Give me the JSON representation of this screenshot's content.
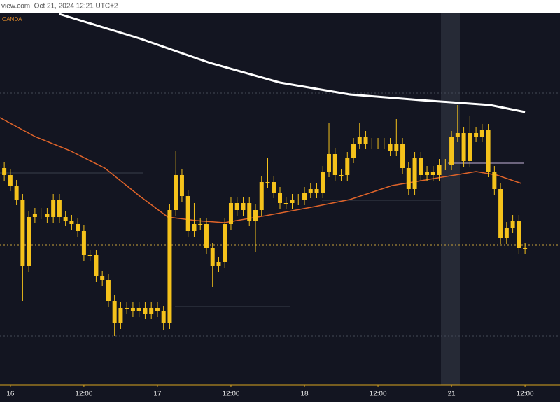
{
  "chart_data": {
    "type": "candlestick",
    "header": "view.com, Oct 21, 2024 12:21 UTC+2",
    "subtitle": "OANDA",
    "color": "#f5c21b",
    "xlim": [
      -1.7,
      89.7
    ],
    "ylim": [
      0,
      540
    ],
    "xticks": [
      {
        "value": 0,
        "label": "16"
      },
      {
        "value": 12,
        "label": "12:00"
      },
      {
        "value": 24,
        "label": "17"
      },
      {
        "value": 36,
        "label": "12:00"
      },
      {
        "value": 48,
        "label": "18"
      },
      {
        "value": 60,
        "label": "12:00"
      },
      {
        "value": 72,
        "label": "21"
      },
      {
        "value": 84,
        "label": "12:00"
      }
    ],
    "x": [
      -1,
      0,
      1,
      2,
      3,
      4,
      5,
      6,
      7,
      8,
      9,
      10,
      11,
      12,
      13,
      14,
      15,
      16,
      17,
      18,
      19,
      20,
      21,
      22,
      23,
      24,
      25,
      26,
      27,
      28,
      29,
      30,
      31,
      32,
      33,
      34,
      35,
      36,
      37,
      38,
      39,
      40,
      41,
      42,
      43,
      44,
      45,
      46,
      47,
      48,
      49,
      50,
      51,
      52,
      53,
      54,
      55,
      56,
      57,
      58,
      59,
      60,
      61,
      62,
      63,
      64,
      65,
      66,
      67,
      68,
      69,
      70,
      71,
      72,
      73,
      74,
      75,
      76,
      77,
      78,
      79,
      80,
      81,
      82,
      83,
      84
    ],
    "open": [
      320,
      310,
      295,
      275,
      180,
      250,
      255,
      255,
      250,
      275,
      250,
      245,
      240,
      230,
      195,
      195,
      165,
      160,
      130,
      98,
      120,
      120,
      115,
      120,
      112,
      120,
      115,
      98,
      260,
      310,
      280,
      230,
      240,
      240,
      205,
      180,
      185,
      240,
      270,
      260,
      270,
      245,
      260,
      300,
      300,
      285,
      270,
      270,
      275,
      275,
      285,
      290,
      285,
      315,
      340,
      310,
      310,
      335,
      355,
      365,
      355,
      355,
      355,
      355,
      345,
      355,
      320,
      290,
      335,
      310,
      315,
      310,
      325,
      325,
      365,
      370,
      330,
      370,
      365,
      375,
      315,
      290,
      220,
      235,
      245,
      205
    ],
    "high": [
      328,
      318,
      303,
      283,
      258,
      263,
      263,
      263,
      283,
      283,
      258,
      253,
      248,
      238,
      203,
      203,
      173,
      168,
      138,
      128,
      128,
      128,
      128,
      128,
      128,
      128,
      123,
      268,
      345,
      318,
      288,
      270,
      248,
      248,
      213,
      193,
      248,
      278,
      278,
      278,
      278,
      268,
      308,
      335,
      308,
      293,
      278,
      283,
      283,
      293,
      298,
      298,
      323,
      385,
      348,
      318,
      343,
      363,
      385,
      373,
      363,
      363,
      363,
      363,
      390,
      363,
      328,
      343,
      343,
      323,
      323,
      333,
      333,
      373,
      410,
      378,
      395,
      378,
      383,
      383,
      323,
      298,
      243,
      253,
      253,
      213
    ],
    "low": [
      302,
      287,
      267,
      130,
      172,
      242,
      247,
      242,
      242,
      242,
      237,
      232,
      222,
      187,
      187,
      157,
      152,
      122,
      80,
      90,
      112,
      107,
      107,
      104,
      104,
      107,
      88,
      90,
      252,
      272,
      222,
      222,
      232,
      197,
      150,
      172,
      177,
      232,
      252,
      252,
      237,
      200,
      252,
      292,
      277,
      262,
      262,
      262,
      267,
      267,
      277,
      277,
      277,
      307,
      302,
      302,
      302,
      327,
      347,
      347,
      347,
      347,
      347,
      337,
      337,
      312,
      282,
      282,
      302,
      302,
      302,
      302,
      317,
      317,
      357,
      322,
      322,
      357,
      357,
      307,
      282,
      212,
      212,
      227,
      197,
      197
    ],
    "close": [
      310,
      295,
      275,
      180,
      250,
      255,
      255,
      250,
      275,
      250,
      245,
      240,
      230,
      195,
      195,
      165,
      160,
      130,
      98,
      120,
      120,
      115,
      120,
      112,
      120,
      115,
      98,
      260,
      310,
      280,
      230,
      240,
      240,
      205,
      180,
      185,
      240,
      270,
      260,
      270,
      245,
      260,
      300,
      300,
      285,
      270,
      270,
      275,
      275,
      285,
      290,
      285,
      315,
      340,
      310,
      310,
      335,
      355,
      365,
      355,
      355,
      355,
      355,
      345,
      355,
      320,
      290,
      335,
      310,
      315,
      310,
      325,
      325,
      365,
      370,
      330,
      370,
      365,
      375,
      315,
      290,
      220,
      235,
      245,
      205,
      205
    ],
    "lines": [
      {
        "color": "#ffffff",
        "x": [
          8,
          21.1,
          32.6,
          44,
          55.4,
          66.9,
          78.3,
          84
        ],
        "values": [
          540,
          505,
          470,
          442,
          425,
          417,
          410,
          400
        ]
      },
      {
        "color": "#e0642a",
        "x": [
          -1.7,
          4,
          9.7,
          15.4,
          21.1,
          25.7,
          30.3,
          34.9,
          41.7,
          49.7,
          55.4,
          62.3,
          69.1,
          76,
          79.4,
          83.4
        ],
        "values": [
          392,
          365,
          345,
          320,
          280,
          250,
          245,
          242,
          252,
          265,
          275,
          295,
          305,
          315,
          310,
          298
        ]
      }
    ]
  }
}
